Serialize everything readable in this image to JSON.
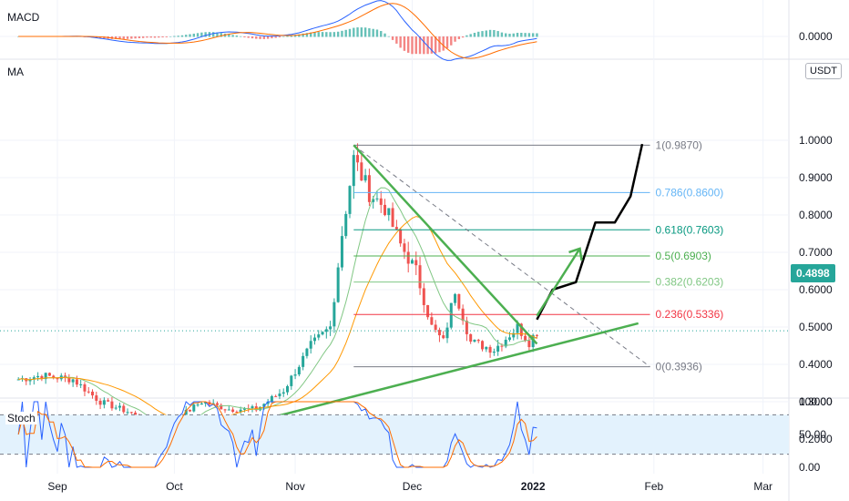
{
  "panes": {
    "macd_label": "MACD",
    "ma_label": "MA",
    "stoch_label": "Stoch",
    "quote_currency": "USDT",
    "macd_ticks": [
      "0.0000"
    ],
    "stoch_ticks": [
      "100.00",
      "50.00",
      "0.00"
    ],
    "price_ticks": [
      "1.0000",
      "0.9000",
      "0.8000",
      "0.7000",
      "0.6000",
      "0.5000",
      "0.4000",
      "0.3000",
      "0.2000"
    ],
    "x_ticks": [
      "Sep",
      "Oct",
      "Nov",
      "Dec",
      "2022",
      "Feb",
      "Mar"
    ]
  },
  "colors": {
    "up": "#26a69a",
    "down": "#ef5350",
    "trend": "#4caf50",
    "projection": "#000000",
    "ma_fast": "#81c784",
    "ma_slow": "#ff9800",
    "ma_base": "#e53935",
    "macd_line": "#2962ff",
    "signal_line": "#ff6d00",
    "stoch_k": "#2962ff",
    "stoch_d": "#ff6d00",
    "stoch_band": "#e3f2fd"
  },
  "chart_data": {
    "type": "candlestick",
    "last_price": "0.4898",
    "ylim": [
      0.16,
      1.06
    ],
    "x_months": [
      "Sep",
      "Oct",
      "Nov",
      "Dec",
      "2022",
      "Feb",
      "Mar"
    ],
    "fib_levels": [
      {
        "label": "1(0.9870)",
        "value": 0.987,
        "color": "#787b86"
      },
      {
        "label": "0.786(0.8600)",
        "value": 0.86,
        "color": "#64b5f6"
      },
      {
        "label": "0.618(0.7603)",
        "value": 0.7603,
        "color": "#089981"
      },
      {
        "label": "0.5(0.6903)",
        "value": 0.6903,
        "color": "#4caf50"
      },
      {
        "label": "0.382(0.6203)",
        "value": 0.6203,
        "color": "#81c784"
      },
      {
        "label": "0.236(0.5336)",
        "value": 0.5336,
        "color": "#f23645"
      },
      {
        "label": "0(0.3936)",
        "value": 0.3936,
        "color": "#787b86"
      }
    ],
    "ohlc_anchors": [
      [
        "08-22",
        0.36
      ],
      [
        "08-28",
        0.37
      ],
      [
        "09-05",
        0.36
      ],
      [
        "09-12",
        0.3
      ],
      [
        "09-20",
        0.27
      ],
      [
        "09-26",
        0.2
      ],
      [
        "10-01",
        0.25
      ],
      [
        "10-08",
        0.3
      ],
      [
        "10-15",
        0.28
      ],
      [
        "10-22",
        0.28
      ],
      [
        "10-29",
        0.33
      ],
      [
        "11-05",
        0.45
      ],
      [
        "11-10",
        0.5
      ],
      [
        "11-13",
        0.75
      ],
      [
        "11-16",
        0.95
      ],
      [
        "11-20",
        0.86
      ],
      [
        "11-24",
        0.82
      ],
      [
        "11-28",
        0.72
      ],
      [
        "12-02",
        0.65
      ],
      [
        "12-06",
        0.5
      ],
      [
        "12-09",
        0.46
      ],
      [
        "12-12",
        0.6
      ],
      [
        "12-16",
        0.46
      ],
      [
        "12-22",
        0.44
      ],
      [
        "12-28",
        0.5
      ],
      [
        "12-31",
        0.46
      ],
      [
        "01-02",
        0.49
      ]
    ],
    "projection_path": [
      [
        "01-02",
        0.52
      ],
      [
        "01-06",
        0.6
      ],
      [
        "01-12",
        0.62
      ],
      [
        "01-17",
        0.78
      ],
      [
        "01-22",
        0.78
      ],
      [
        "01-26",
        0.85
      ],
      [
        "01-29",
        0.99
      ]
    ],
    "arrow": {
      "from": [
        "01-02",
        0.53
      ],
      "to": [
        "01-13",
        0.71
      ]
    }
  }
}
